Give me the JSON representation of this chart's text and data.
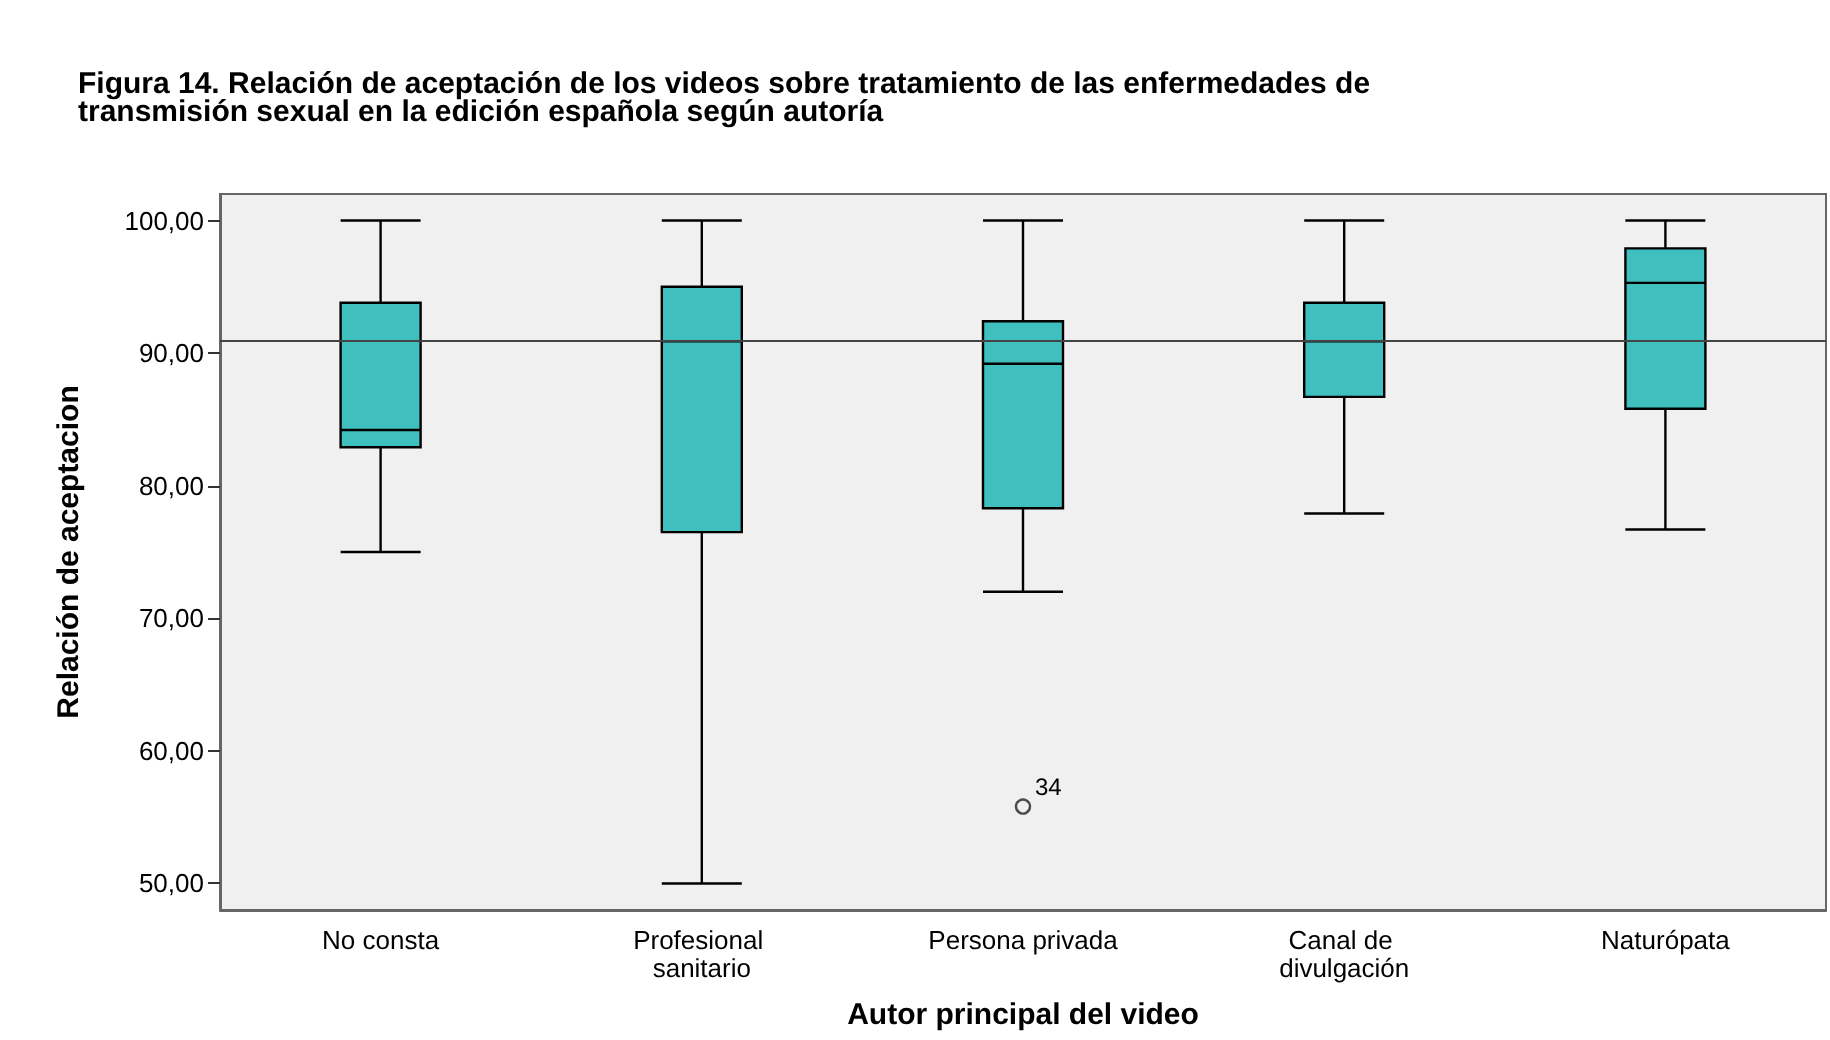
{
  "chart_data": {
    "type": "box",
    "title": "Figura 14. Relación de aceptación de los videos sobre tratamiento de las enfermedades de transmisión sexual en la edición española según autoría",
    "xlabel": "Autor principal del video",
    "ylabel": "Relación de aceptacion",
    "categories": [
      "No consta",
      "Profesional sanitario",
      "Persona privada",
      "Canal de divulgación",
      "Naturópata"
    ],
    "series": [
      {
        "color": "#40bfbf",
        "boxes": [
          {
            "low": 75,
            "q1": 82.9,
            "median": 84.2,
            "q3": 93.8,
            "high": 100
          },
          {
            "low": 50,
            "q1": 76.5,
            "median": 90.9,
            "q3": 95,
            "high": 100
          },
          {
            "low": 72,
            "q1": 78.3,
            "median": 89.2,
            "q3": 92.4,
            "high": 100,
            "outliers": [
              55.8
            ]
          },
          {
            "low": 77.9,
            "q1": 86.7,
            "median": 90.9,
            "q3": 93.8,
            "high": 100
          },
          {
            "low": 76.7,
            "q1": 85.8,
            "median": 95.3,
            "q3": 97.9,
            "high": 100
          }
        ]
      }
    ],
    "ylim": [
      48,
      102
    ],
    "yticks": [
      {
        "value": 50,
        "label": "50,00"
      },
      {
        "value": 60,
        "label": "60,00"
      },
      {
        "value": 70,
        "label": "70,00"
      },
      {
        "value": 80,
        "label": "80,00"
      },
      {
        "value": 90,
        "label": "90,00"
      },
      {
        "value": 100,
        "label": "100,00"
      }
    ],
    "ref_lines": [
      {
        "axis": "y",
        "value": 90.9
      }
    ],
    "annotations": [
      "34"
    ],
    "grid": false
  }
}
